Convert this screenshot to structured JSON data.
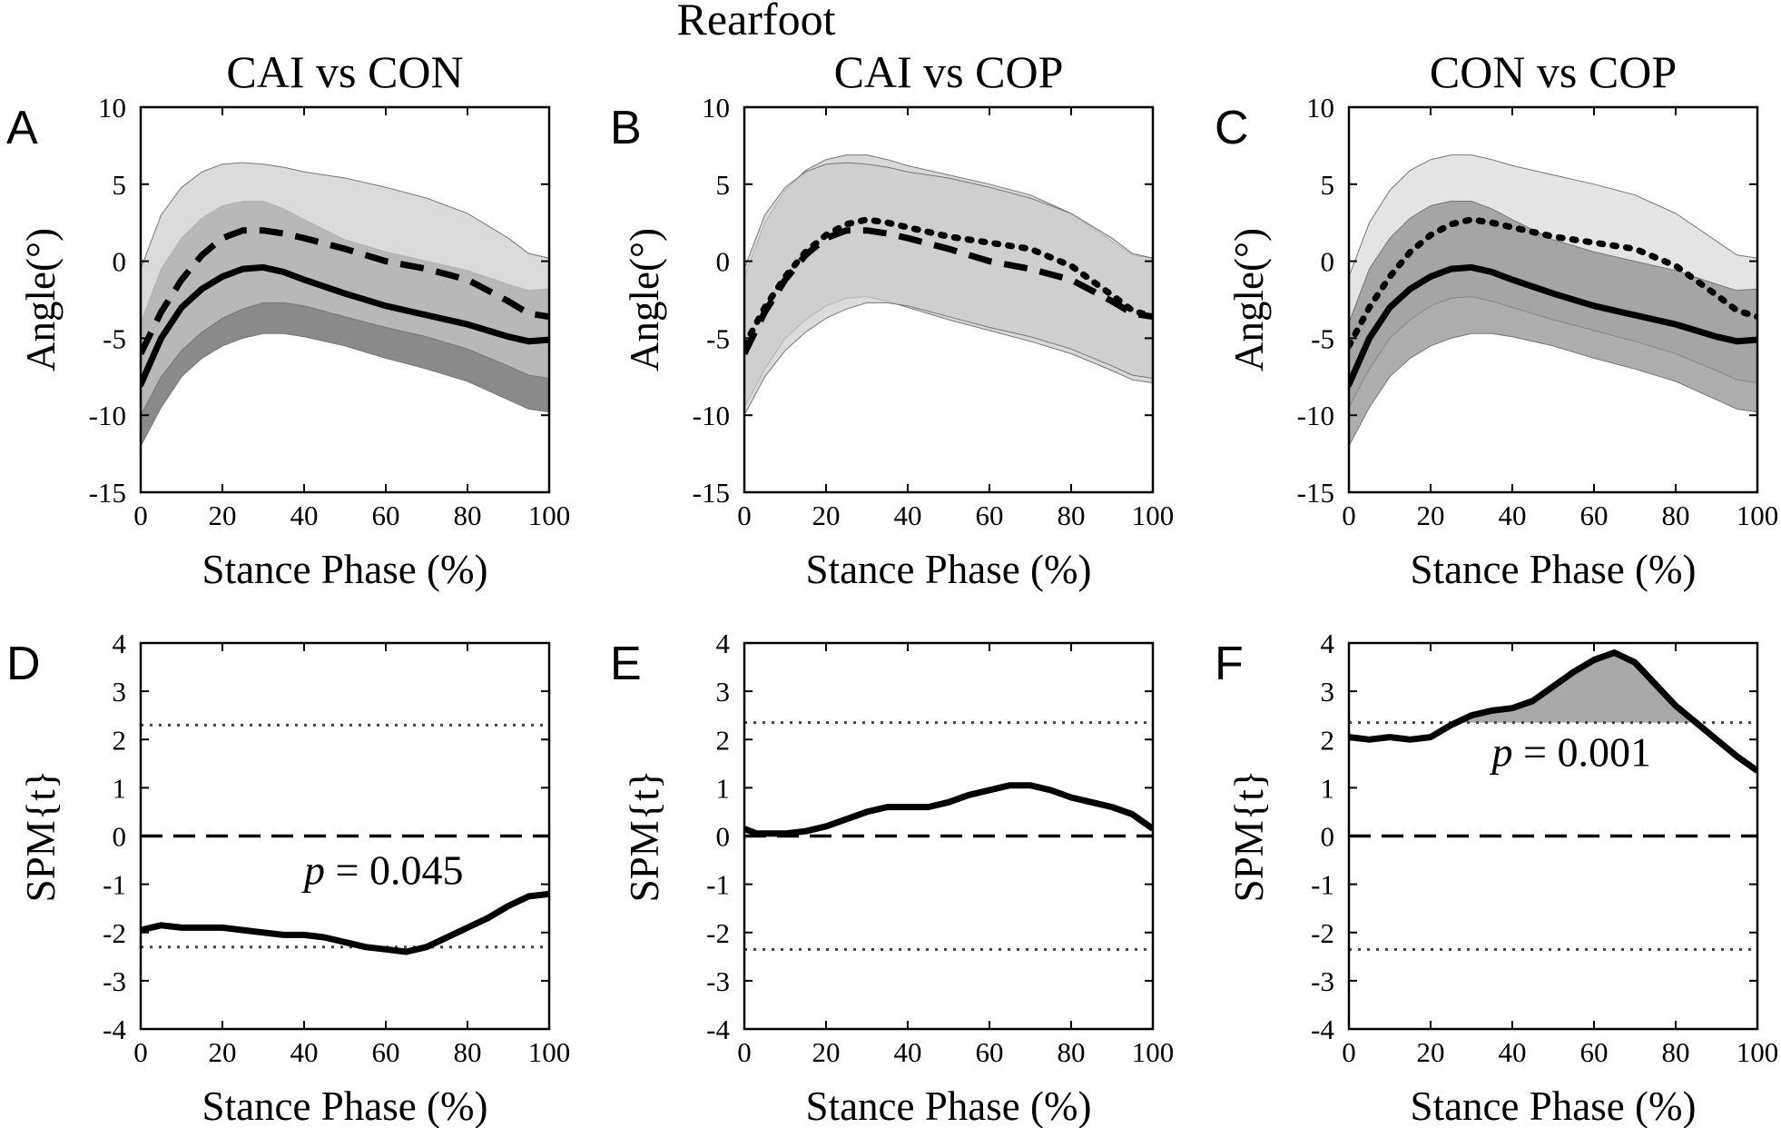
{
  "figure": {
    "suptitle": "Rearfoot"
  },
  "chart_data": [
    {
      "id": "A",
      "type": "line",
      "panel_label": "A",
      "title": "CAI vs CON",
      "xlabel": "Stance Phase (%)",
      "ylabel": "Angle(°)",
      "xlim": [
        0,
        100
      ],
      "ylim": [
        -15,
        10
      ],
      "xticks": [
        "0",
        "20",
        "40",
        "60",
        "80",
        "100"
      ],
      "yticks": [
        "10",
        "5",
        "0",
        "-5",
        "-10",
        "-15"
      ],
      "series": [
        {
          "style": "solid",
          "band_color": "#8a8a8a",
          "x": [
            0,
            5,
            10,
            15,
            20,
            25,
            30,
            35,
            40,
            50,
            60,
            70,
            80,
            90,
            95,
            100
          ],
          "mean": [
            -8,
            -5,
            -3,
            -1.8,
            -1,
            -0.5,
            -0.4,
            -0.7,
            -1.2,
            -2.1,
            -2.9,
            -3.5,
            -4.1,
            -4.9,
            -5.2,
            -5.1
          ],
          "upper": [
            -4,
            -0.5,
            1.5,
            2.8,
            3.6,
            3.9,
            3.9,
            3.4,
            2.7,
            1.4,
            0.6,
            0,
            -0.6,
            -1.5,
            -1.9,
            -1.8
          ],
          "lower": [
            -12,
            -9.5,
            -7.5,
            -6.3,
            -5.5,
            -5,
            -4.7,
            -4.7,
            -4.9,
            -5.5,
            -6.3,
            -7,
            -7.8,
            -9,
            -9.6,
            -9.8
          ]
        },
        {
          "style": "dashed",
          "band_color": "#cccccc",
          "x": [
            0,
            5,
            10,
            15,
            20,
            25,
            30,
            35,
            40,
            50,
            60,
            70,
            80,
            90,
            95,
            100
          ],
          "mean": [
            -6,
            -3.3,
            -1.2,
            0.4,
            1.5,
            2,
            2,
            1.8,
            1.5,
            0.8,
            0,
            -0.5,
            -1.2,
            -2.6,
            -3.4,
            -3.6
          ],
          "upper": [
            -0.5,
            3,
            4.8,
            5.8,
            6.3,
            6.4,
            6.3,
            6.1,
            5.8,
            5.4,
            4.8,
            4.1,
            3.1,
            1.5,
            0.5,
            0.2
          ],
          "lower": [
            -10,
            -7.5,
            -5.8,
            -4.6,
            -3.7,
            -3.1,
            -2.7,
            -2.7,
            -2.9,
            -3.6,
            -4.3,
            -4.9,
            -5.7,
            -6.8,
            -7.4,
            -7.6
          ]
        }
      ]
    },
    {
      "id": "B",
      "type": "line",
      "panel_label": "B",
      "title": "CAI vs COP",
      "xlabel": "Stance Phase (%)",
      "ylabel": "Angle(°)",
      "xlim": [
        0,
        100
      ],
      "ylim": [
        -15,
        10
      ],
      "xticks": [
        "0",
        "20",
        "40",
        "60",
        "80",
        "100"
      ],
      "yticks": [
        "10",
        "5",
        "0",
        "-5",
        "-10",
        "-15"
      ],
      "series": [
        {
          "style": "dotted",
          "band_color": "#d8d8d8",
          "x": [
            0,
            5,
            10,
            15,
            20,
            25,
            30,
            35,
            40,
            50,
            60,
            70,
            80,
            90,
            95,
            100
          ],
          "mean": [
            -5.5,
            -3,
            -1,
            0.6,
            1.7,
            2.4,
            2.7,
            2.5,
            2.2,
            1.6,
            1.2,
            0.8,
            -0.3,
            -2.2,
            -3.2,
            -3.6
          ],
          "upper": [
            -1,
            2.5,
            4.6,
            5.9,
            6.6,
            6.9,
            6.9,
            6.6,
            6.2,
            5.6,
            5,
            4.3,
            3.1,
            1.3,
            0.4,
            0.2
          ],
          "lower": [
            -9.5,
            -7,
            -5,
            -3.8,
            -2.9,
            -2.4,
            -2.3,
            -2.6,
            -3,
            -3.8,
            -4.5,
            -5.2,
            -6,
            -7.1,
            -7.7,
            -7.9
          ]
        },
        {
          "style": "dashed",
          "band_color": "#cccccc",
          "x": [
            0,
            5,
            10,
            15,
            20,
            25,
            30,
            35,
            40,
            50,
            60,
            70,
            80,
            90,
            95,
            100
          ],
          "mean": [
            -6,
            -3.3,
            -1.2,
            0.4,
            1.5,
            2,
            2,
            1.8,
            1.5,
            0.8,
            0,
            -0.5,
            -1.2,
            -2.6,
            -3.4,
            -3.6
          ],
          "upper": [
            -0.5,
            3,
            4.8,
            5.8,
            6.3,
            6.4,
            6.3,
            6.1,
            5.8,
            5.4,
            4.8,
            4.1,
            3.1,
            1.5,
            0.5,
            0.2
          ],
          "lower": [
            -10,
            -7.5,
            -5.8,
            -4.6,
            -3.7,
            -3.1,
            -2.7,
            -2.7,
            -2.9,
            -3.6,
            -4.3,
            -4.9,
            -5.7,
            -6.8,
            -7.4,
            -7.6
          ]
        }
      ]
    },
    {
      "id": "C",
      "type": "line",
      "panel_label": "C",
      "title": "CON vs COP",
      "xlabel": "Stance Phase (%)",
      "ylabel": "Angle(°)",
      "xlim": [
        0,
        100
      ],
      "ylim": [
        -15,
        10
      ],
      "xticks": [
        "0",
        "20",
        "40",
        "60",
        "80",
        "100"
      ],
      "yticks": [
        "10",
        "5",
        "0",
        "-5",
        "-10",
        "-15"
      ],
      "series": [
        {
          "style": "dotted",
          "band_color": "#e4e4e4",
          "x": [
            0,
            5,
            10,
            15,
            20,
            25,
            30,
            35,
            40,
            50,
            60,
            70,
            80,
            90,
            95,
            100
          ],
          "mean": [
            -5.5,
            -3,
            -1,
            0.6,
            1.7,
            2.4,
            2.7,
            2.5,
            2.2,
            1.6,
            1.2,
            0.8,
            -0.3,
            -2.2,
            -3.2,
            -3.6
          ],
          "upper": [
            -1,
            2.5,
            4.6,
            5.9,
            6.6,
            6.9,
            6.9,
            6.6,
            6.2,
            5.6,
            5,
            4.3,
            3.1,
            1.3,
            0.4,
            0.2
          ],
          "lower": [
            -9.5,
            -7,
            -5,
            -3.8,
            -2.9,
            -2.4,
            -2.3,
            -2.6,
            -3,
            -3.8,
            -4.5,
            -5.2,
            -6,
            -7.1,
            -7.7,
            -7.9
          ]
        },
        {
          "style": "solid",
          "band_color": "#8a8a8a",
          "x": [
            0,
            5,
            10,
            15,
            20,
            25,
            30,
            35,
            40,
            50,
            60,
            70,
            80,
            90,
            95,
            100
          ],
          "mean": [
            -8,
            -5,
            -3,
            -1.8,
            -1,
            -0.5,
            -0.4,
            -0.7,
            -1.2,
            -2.1,
            -2.9,
            -3.5,
            -4.1,
            -4.9,
            -5.2,
            -5.1
          ],
          "upper": [
            -4,
            -0.5,
            1.5,
            2.8,
            3.6,
            3.9,
            3.9,
            3.4,
            2.7,
            1.4,
            0.6,
            0,
            -0.6,
            -1.5,
            -1.9,
            -1.8
          ],
          "lower": [
            -12,
            -9.5,
            -7.5,
            -6.3,
            -5.5,
            -5,
            -4.7,
            -4.7,
            -4.9,
            -5.5,
            -6.3,
            -7,
            -7.8,
            -9,
            -9.6,
            -9.8
          ]
        }
      ]
    },
    {
      "id": "D",
      "type": "line",
      "panel_label": "D",
      "xlabel": "Stance Phase (%)",
      "ylabel": "SPM{t}",
      "xlim": [
        0,
        100
      ],
      "ylim": [
        -4,
        4
      ],
      "xticks": [
        "0",
        "20",
        "40",
        "60",
        "80",
        "100"
      ],
      "yticks": [
        "4",
        "3",
        "2",
        "1",
        "0",
        "-1",
        "-2",
        "-3",
        "-4"
      ],
      "threshold": 2.3,
      "p_value": "0.045",
      "p_anchor": [
        40,
        -1
      ],
      "x": [
        0,
        5,
        10,
        15,
        20,
        25,
        30,
        35,
        40,
        45,
        50,
        55,
        60,
        65,
        70,
        75,
        80,
        85,
        90,
        95,
        100
      ],
      "values": [
        -1.95,
        -1.85,
        -1.9,
        -1.9,
        -1.9,
        -1.95,
        -2,
        -2.05,
        -2.05,
        -2.1,
        -2.2,
        -2.3,
        -2.35,
        -2.4,
        -2.3,
        -2.1,
        -1.9,
        -1.7,
        -1.45,
        -1.25,
        -1.2
      ],
      "cluster": []
    },
    {
      "id": "E",
      "type": "line",
      "panel_label": "E",
      "xlabel": "Stance Phase (%)",
      "ylabel": "SPM{t}",
      "xlim": [
        0,
        100
      ],
      "ylim": [
        -4,
        4
      ],
      "xticks": [
        "0",
        "20",
        "40",
        "60",
        "80",
        "100"
      ],
      "yticks": [
        "4",
        "3",
        "2",
        "1",
        "0",
        "-1",
        "-2",
        "-3",
        "-4"
      ],
      "threshold": 2.35,
      "p_value": "",
      "x": [
        0,
        3,
        6,
        10,
        15,
        20,
        25,
        30,
        35,
        40,
        45,
        50,
        55,
        60,
        65,
        70,
        75,
        80,
        85,
        90,
        95,
        100
      ],
      "values": [
        0.15,
        0.05,
        0.05,
        0.05,
        0.1,
        0.2,
        0.35,
        0.5,
        0.6,
        0.6,
        0.6,
        0.7,
        0.85,
        0.95,
        1.05,
        1.05,
        0.95,
        0.8,
        0.7,
        0.6,
        0.45,
        0.15
      ],
      "cluster": []
    },
    {
      "id": "F",
      "type": "line",
      "panel_label": "F",
      "xlabel": "Stance Phase (%)",
      "ylabel": "SPM{t}",
      "xlim": [
        0,
        100
      ],
      "ylim": [
        -4,
        4
      ],
      "xticks": [
        "0",
        "20",
        "40",
        "60",
        "80",
        "100"
      ],
      "yticks": [
        "4",
        "3",
        "2",
        "1",
        "0",
        "-1",
        "-2",
        "-3",
        "-4"
      ],
      "threshold": 2.35,
      "p_value": "0.001",
      "p_anchor": [
        35,
        1.45
      ],
      "x": [
        0,
        5,
        10,
        15,
        20,
        25,
        30,
        35,
        40,
        45,
        50,
        55,
        60,
        65,
        70,
        75,
        80,
        85,
        90,
        95,
        100
      ],
      "values": [
        2.05,
        2,
        2.05,
        2,
        2.05,
        2.3,
        2.5,
        2.6,
        2.65,
        2.8,
        3.1,
        3.4,
        3.65,
        3.8,
        3.6,
        3.15,
        2.7,
        2.35,
        2,
        1.65,
        1.35
      ],
      "cluster": [
        27,
        86
      ]
    }
  ]
}
